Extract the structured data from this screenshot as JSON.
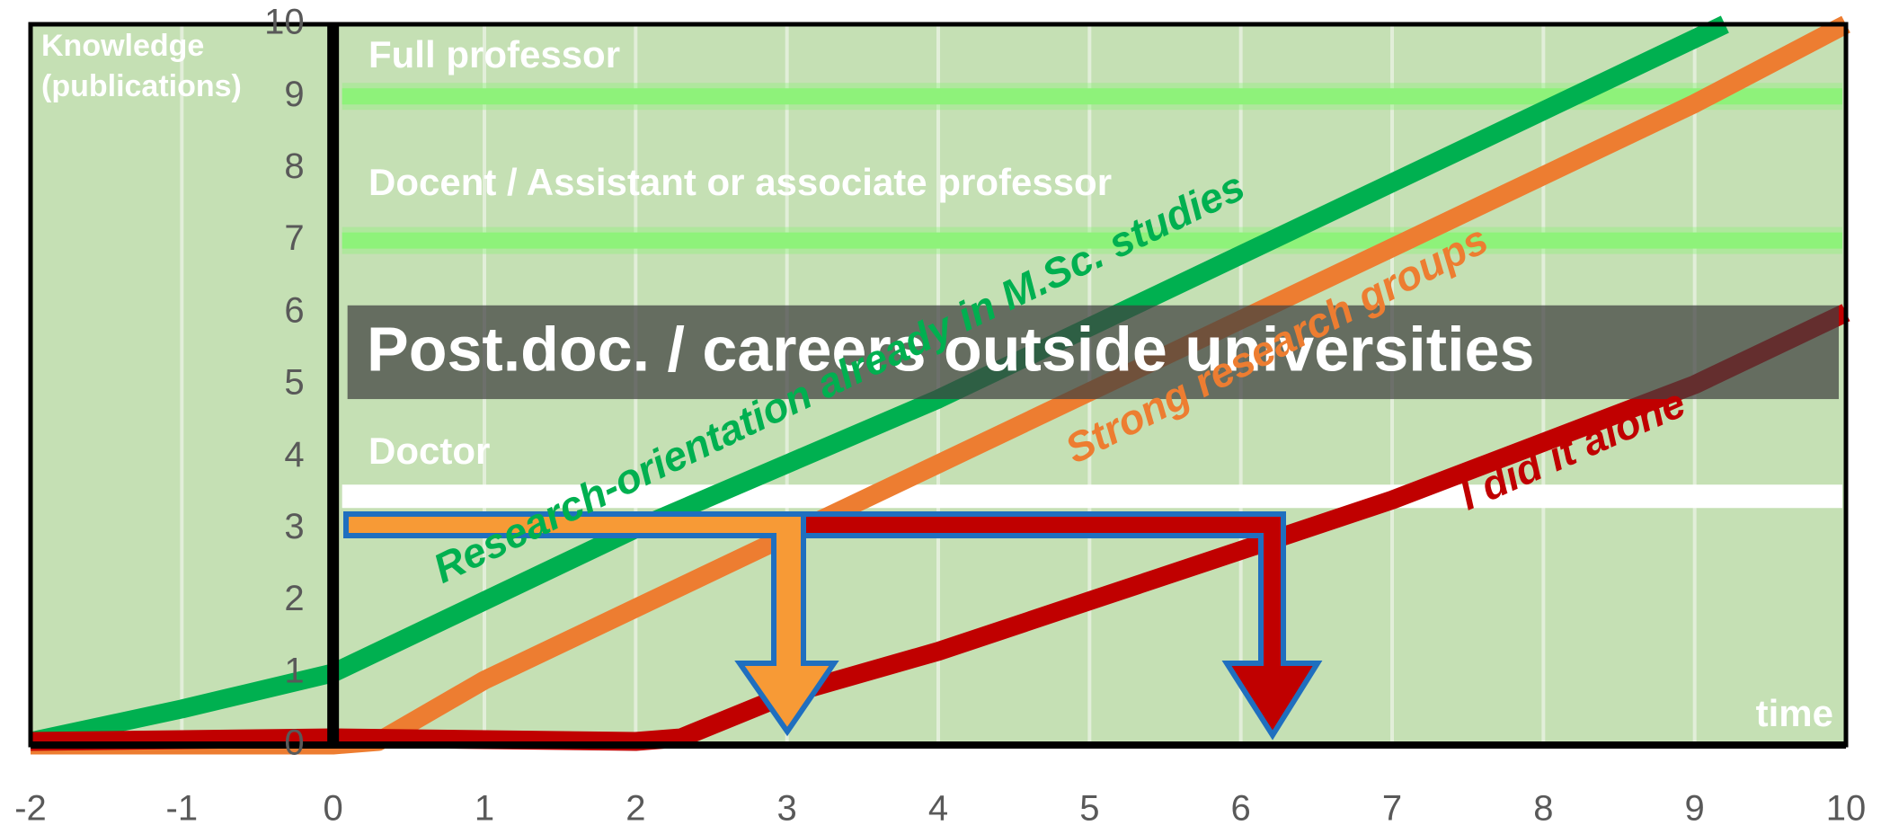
{
  "chart_data": {
    "type": "line",
    "y_label_lines": [
      "Knowledge",
      "(publications)"
    ],
    "x_label": "time",
    "xlim": [
      -2,
      10
    ],
    "xticks": [
      -2,
      -1,
      0,
      1,
      2,
      3,
      4,
      5,
      6,
      7,
      8,
      9,
      10
    ],
    "ylim": [
      0,
      10
    ],
    "yticks": [
      0,
      1,
      2,
      3,
      4,
      5,
      6,
      7,
      8,
      9,
      10
    ],
    "grid": true,
    "background": "#c5e0b4",
    "levels": [
      {
        "label": "Full professor",
        "line": 9,
        "color": "#8ef27a"
      },
      {
        "label": "Docent / Assistant or associate professor",
        "line": 7,
        "color": "#8ef27a"
      },
      {
        "label": "Post.doc. / careers outside universities",
        "band": [
          4.8,
          6.1
        ],
        "color": "#404040"
      },
      {
        "label": "Doctor",
        "line": 3.45,
        "color": "#ffffff"
      }
    ],
    "series": [
      {
        "name": "Research-orientation already in M.Sc. studies",
        "color": "#00b050",
        "x": [
          -2,
          -1,
          0,
          1,
          2,
          3,
          4,
          5,
          6,
          7,
          8,
          9.2
        ],
        "values": [
          0.05,
          0.5,
          1,
          2,
          3,
          3.9,
          4.8,
          5.8,
          6.8,
          7.8,
          8.8,
          10
        ]
      },
      {
        "name": "Strong research groups",
        "color": "#ed7d31",
        "x": [
          -2,
          0,
          0.3,
          1,
          2,
          3,
          4,
          5,
          6,
          7,
          8,
          9,
          10
        ],
        "values": [
          0,
          0,
          0.05,
          0.9,
          1.9,
          2.9,
          3.9,
          4.9,
          5.9,
          6.9,
          7.9,
          8.9,
          10
        ]
      },
      {
        "name": "I did it alone",
        "color": "#c00000",
        "x": [
          -2,
          0,
          2,
          2.3,
          3,
          4,
          5,
          6,
          7,
          8,
          9,
          10
        ],
        "values": [
          0.05,
          0.1,
          0.05,
          0.1,
          0.7,
          1.3,
          2.0,
          2.7,
          3.4,
          4.2,
          5,
          6
        ]
      }
    ]
  }
}
